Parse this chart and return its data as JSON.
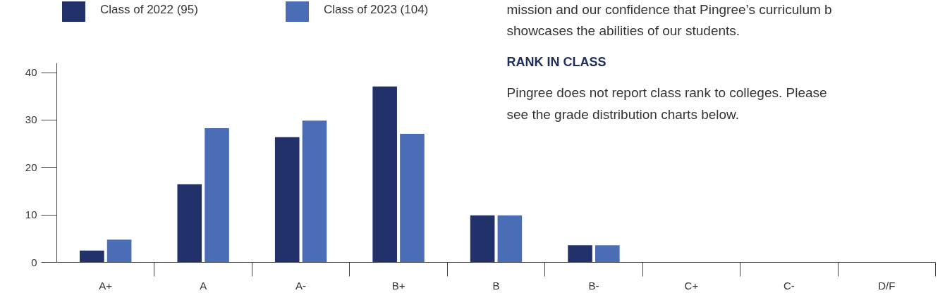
{
  "chart_data": {
    "type": "bar",
    "categories": [
      "A+",
      "A",
      "A-",
      "B+",
      "B",
      "B-",
      "C+",
      "C-",
      "D/F"
    ],
    "series": [
      {
        "name": "Class of 2022 (95)",
        "color": "#22316a",
        "values": [
          2.5,
          16.5,
          26.4,
          37.1,
          9.9,
          3.6,
          0,
          0,
          0
        ]
      },
      {
        "name": "Class of 2023 (104)",
        "color": "#4a6db5",
        "values": [
          4.8,
          28.3,
          29.9,
          27.1,
          9.9,
          3.6,
          0,
          0,
          0
        ]
      }
    ],
    "ylim": [
      0,
      42
    ],
    "yticks": [
      0,
      10,
      20,
      30,
      40
    ],
    "grid": false,
    "legend": "top left",
    "annotations": [
      "mission and our confidence that Pingree’s curriculum b",
      "showcases the abilities of our students.",
      "RANK IN CLASS",
      "Pingree does not report class rank to colleges. Please",
      "see the grade distribution charts below."
    ]
  }
}
